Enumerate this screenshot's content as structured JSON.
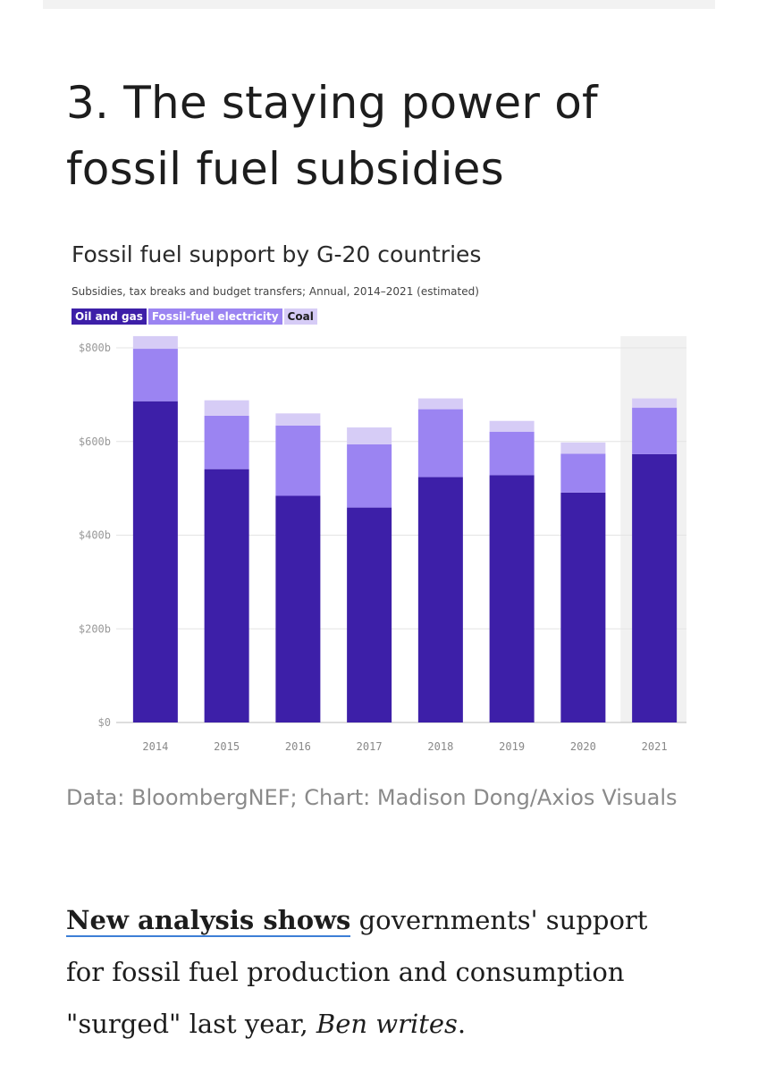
{
  "heading": "3. The staying power of fossil fuel subsidies",
  "chart_data": {
    "type": "bar",
    "stacked": true,
    "title": "Fossil fuel support by G-20 countries",
    "subtitle": "Subsidies, tax breaks and budget transfers; Annual, 2014–2021 (estimated)",
    "categories": [
      "2014",
      "2015",
      "2016",
      "2017",
      "2018",
      "2019",
      "2020",
      "2021"
    ],
    "series": [
      {
        "name": "Oil and gas",
        "color": "#3d1fa8",
        "values": [
          686,
          541,
          484,
          459,
          524,
          528,
          491,
          573
        ]
      },
      {
        "name": "Fossil-fuel electricity",
        "color": "#9b84f2",
        "values": [
          112,
          114,
          150,
          135,
          145,
          93,
          83,
          99
        ]
      },
      {
        "name": "Coal",
        "color": "#d6ccf6",
        "values": [
          27,
          33,
          26,
          36,
          23,
          23,
          24,
          20
        ]
      }
    ],
    "yticks": [
      0,
      200,
      400,
      600,
      800
    ],
    "ytick_labels": [
      "$0",
      "$200b",
      "$400b",
      "$600b",
      "$800b"
    ],
    "ylim": [
      0,
      800
    ],
    "highlighted_category": "2021",
    "grid": true
  },
  "credit": {
    "line1": "Data: BloombergNEF; Chart: Madison Dong/Axios",
    "line2": "Visuals"
  },
  "body": {
    "link_text": "New analysis shows",
    "text1": " governments' support for fossil fuel production and consumption \"surged\" last year, ",
    "author": "Ben writes",
    "end": "."
  }
}
